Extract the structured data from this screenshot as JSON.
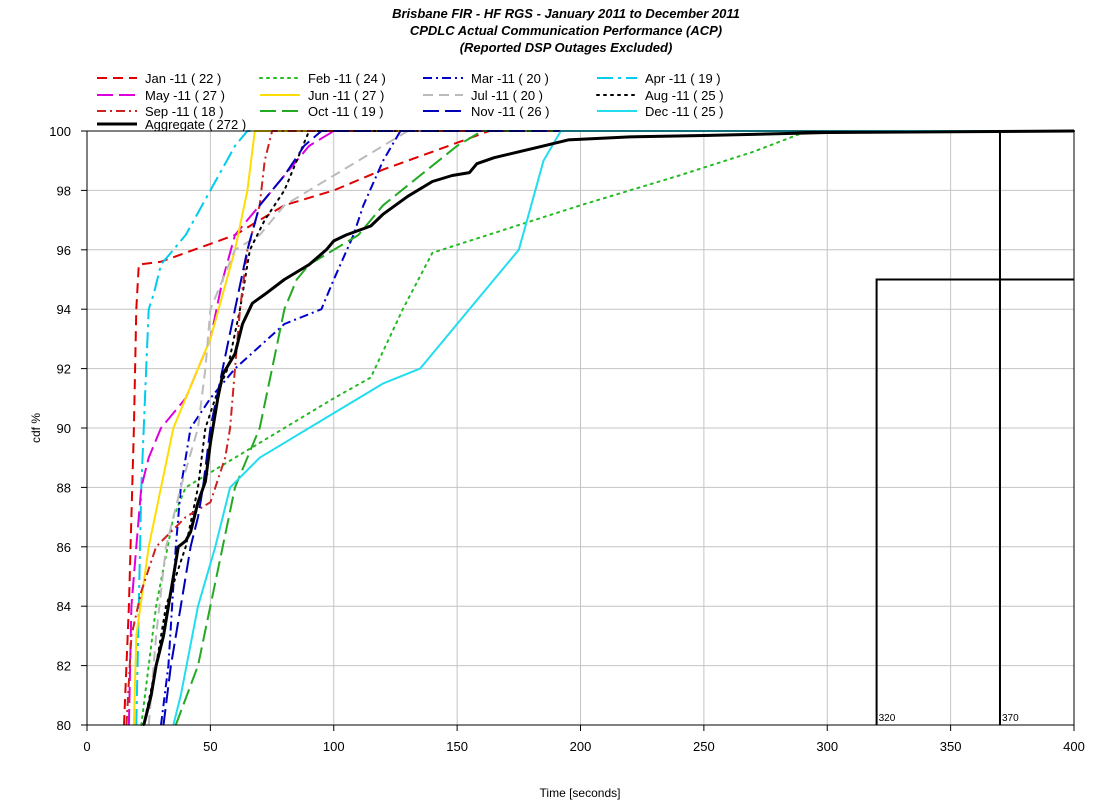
{
  "chart_data": {
    "type": "line",
    "title": "Brisbane FIR - HF RGS - January 2011 to December 2011",
    "subtitle": "CPDLC Actual Communication Performance (ACP)",
    "subtitle2": "(Reported DSP Outages Excluded)",
    "xlabel": "Time [seconds]",
    "ylabel": "cdf %",
    "xlim": [
      0,
      400
    ],
    "ylim": [
      80,
      100
    ],
    "grid": true,
    "legend_placement": "top",
    "x_ticks": [
      0,
      50,
      100,
      150,
      200,
      250,
      300,
      350,
      400
    ],
    "y_ticks": [
      80,
      82,
      84,
      86,
      88,
      90,
      92,
      94,
      96,
      98,
      100
    ],
    "series": [
      {
        "name": "Jan -11 ( 22 )",
        "color": "#e00000",
        "dash": "dashed",
        "points": [
          [
            15,
            80
          ],
          [
            17,
            84
          ],
          [
            19,
            90
          ],
          [
            20,
            94
          ],
          [
            21,
            95.5
          ],
          [
            30,
            95.6
          ],
          [
            60,
            96.5
          ],
          [
            80,
            97.5
          ],
          [
            100,
            98
          ],
          [
            120,
            98.7
          ],
          [
            140,
            99.3
          ],
          [
            163,
            100
          ],
          [
            400,
            100
          ]
        ]
      },
      {
        "name": "Feb -11 ( 24 )",
        "color": "#22bb22",
        "dash": "dotted",
        "points": [
          [
            22,
            80
          ],
          [
            28,
            84
          ],
          [
            35,
            87
          ],
          [
            40,
            88
          ],
          [
            60,
            89
          ],
          [
            80,
            90
          ],
          [
            100,
            91
          ],
          [
            115,
            91.7
          ],
          [
            128,
            94
          ],
          [
            140,
            95.9
          ],
          [
            170,
            96.7
          ],
          [
            200,
            97.5
          ],
          [
            240,
            98.5
          ],
          [
            270,
            99.3
          ],
          [
            292,
            100
          ],
          [
            400,
            100
          ]
        ]
      },
      {
        "name": "Mar -11 ( 20 )",
        "color": "#0000cc",
        "dash": "dashdot",
        "points": [
          [
            30,
            80
          ],
          [
            33,
            82
          ],
          [
            36,
            86
          ],
          [
            38,
            88
          ],
          [
            42,
            90
          ],
          [
            50,
            91
          ],
          [
            60,
            92
          ],
          [
            80,
            93.5
          ],
          [
            95,
            94
          ],
          [
            100,
            95
          ],
          [
            108,
            96.5
          ],
          [
            112,
            97.5
          ],
          [
            120,
            99
          ],
          [
            127,
            100
          ],
          [
            400,
            100
          ]
        ]
      },
      {
        "name": "Apr -11 ( 19 )",
        "color": "#00ccee",
        "dash": "longdashdot",
        "points": [
          [
            20,
            80
          ],
          [
            21,
            84
          ],
          [
            22,
            88
          ],
          [
            24,
            92
          ],
          [
            25,
            94
          ],
          [
            27,
            94.5
          ],
          [
            30,
            95.5
          ],
          [
            40,
            96.5
          ],
          [
            50,
            98
          ],
          [
            60,
            99.5
          ],
          [
            65,
            100
          ],
          [
            400,
            100
          ]
        ]
      },
      {
        "name": "May -11 ( 27 )",
        "color": "#dd00dd",
        "dash": "longdash",
        "points": [
          [
            17,
            80
          ],
          [
            18,
            84
          ],
          [
            20,
            86
          ],
          [
            22,
            88
          ],
          [
            25,
            89
          ],
          [
            30,
            90
          ],
          [
            40,
            91
          ],
          [
            50,
            93
          ],
          [
            55,
            95
          ],
          [
            60,
            96.5
          ],
          [
            70,
            97.5
          ],
          [
            80,
            98.5
          ],
          [
            90,
            99.5
          ],
          [
            100,
            100
          ],
          [
            400,
            100
          ]
        ]
      },
      {
        "name": "Jun -11 ( 27 )",
        "color": "#ffdd00",
        "dash": "solid",
        "points": [
          [
            19,
            80
          ],
          [
            20,
            83
          ],
          [
            25,
            86
          ],
          [
            30,
            88
          ],
          [
            35,
            90
          ],
          [
            45,
            92
          ],
          [
            50,
            93
          ],
          [
            55,
            94.5
          ],
          [
            60,
            96
          ],
          [
            65,
            98
          ],
          [
            68,
            100
          ],
          [
            400,
            100
          ]
        ]
      },
      {
        "name": "Jul -11 ( 20 )",
        "color": "#bbbbbb",
        "dash": "dashed",
        "points": [
          [
            25,
            80
          ],
          [
            28,
            83
          ],
          [
            32,
            86
          ],
          [
            38,
            88
          ],
          [
            45,
            90
          ],
          [
            48,
            92
          ],
          [
            50,
            94
          ],
          [
            55,
            95
          ],
          [
            60,
            96
          ],
          [
            70,
            96.5
          ],
          [
            80,
            97.5
          ],
          [
            100,
            98.5
          ],
          [
            110,
            99
          ],
          [
            130,
            100
          ],
          [
            400,
            100
          ]
        ]
      },
      {
        "name": "Aug -11 ( 25 )",
        "color": "#000000",
        "dash": "dotted",
        "points": [
          [
            23,
            80
          ],
          [
            28,
            82
          ],
          [
            32,
            84
          ],
          [
            40,
            86
          ],
          [
            45,
            88
          ],
          [
            48,
            90
          ],
          [
            52,
            91
          ],
          [
            57,
            92
          ],
          [
            62,
            94
          ],
          [
            66,
            96
          ],
          [
            72,
            97
          ],
          [
            80,
            98
          ],
          [
            85,
            99
          ],
          [
            90,
            100
          ],
          [
            400,
            100
          ]
        ]
      },
      {
        "name": "Sep -11 ( 18 )",
        "color": "#cc2222",
        "dash": "dashdot",
        "points": [
          [
            16,
            80
          ],
          [
            18,
            83
          ],
          [
            22,
            84.5
          ],
          [
            28,
            86
          ],
          [
            40,
            87
          ],
          [
            50,
            87.5
          ],
          [
            56,
            89
          ],
          [
            58,
            90
          ],
          [
            60,
            92
          ],
          [
            62,
            94
          ],
          [
            65,
            96
          ],
          [
            70,
            97.5
          ],
          [
            72,
            99
          ],
          [
            75,
            100
          ],
          [
            400,
            100
          ]
        ]
      },
      {
        "name": "Oct -11 ( 19 )",
        "color": "#22aa22",
        "dash": "longdash",
        "points": [
          [
            36,
            80
          ],
          [
            45,
            82
          ],
          [
            55,
            86
          ],
          [
            60,
            88
          ],
          [
            70,
            90
          ],
          [
            75,
            92
          ],
          [
            80,
            94
          ],
          [
            85,
            95
          ],
          [
            90,
            95.5
          ],
          [
            100,
            96
          ],
          [
            110,
            96.5
          ],
          [
            120,
            97.5
          ],
          [
            135,
            98.5
          ],
          [
            150,
            99.5
          ],
          [
            160,
            100
          ],
          [
            400,
            100
          ]
        ]
      },
      {
        "name": "Nov -11 ( 26 )",
        "color": "#0000bb",
        "dash": "longdash",
        "points": [
          [
            31,
            80
          ],
          [
            34,
            82
          ],
          [
            38,
            84
          ],
          [
            42,
            86
          ],
          [
            45,
            87
          ],
          [
            47,
            88
          ],
          [
            50,
            90
          ],
          [
            55,
            92
          ],
          [
            60,
            94
          ],
          [
            65,
            96
          ],
          [
            70,
            97.5
          ],
          [
            80,
            98.5
          ],
          [
            88,
            99.5
          ],
          [
            95,
            100
          ],
          [
            400,
            100
          ]
        ]
      },
      {
        "name": "Dec -11 ( 25 )",
        "color": "#22ddee",
        "dash": "solid",
        "points": [
          [
            35,
            80
          ],
          [
            38,
            81
          ],
          [
            45,
            84
          ],
          [
            52,
            86
          ],
          [
            58,
            88
          ],
          [
            70,
            89
          ],
          [
            100,
            90.5
          ],
          [
            120,
            91.5
          ],
          [
            135,
            92
          ],
          [
            150,
            93.5
          ],
          [
            165,
            95
          ],
          [
            175,
            96
          ],
          [
            180,
            97.5
          ],
          [
            185,
            99
          ],
          [
            192,
            100
          ],
          [
            400,
            100
          ]
        ]
      },
      {
        "name": "Aggregate ( 272 )",
        "color": "#000000",
        "dash": "solid",
        "width": 3,
        "points": [
          [
            23,
            80
          ],
          [
            26,
            81
          ],
          [
            28,
            82
          ],
          [
            31,
            83
          ],
          [
            33,
            84
          ],
          [
            35,
            85
          ],
          [
            37,
            86
          ],
          [
            40,
            86.2
          ],
          [
            42,
            86.5
          ],
          [
            45,
            87.5
          ],
          [
            48,
            88.2
          ],
          [
            50,
            89.5
          ],
          [
            53,
            91
          ],
          [
            55,
            91.8
          ],
          [
            60,
            92.5
          ],
          [
            63,
            93.5
          ],
          [
            67,
            94.2
          ],
          [
            72,
            94.5
          ],
          [
            80,
            95
          ],
          [
            90,
            95.5
          ],
          [
            97,
            96
          ],
          [
            100,
            96.3
          ],
          [
            105,
            96.5
          ],
          [
            115,
            96.8
          ],
          [
            120,
            97.2
          ],
          [
            130,
            97.8
          ],
          [
            140,
            98.3
          ],
          [
            148,
            98.5
          ],
          [
            155,
            98.6
          ],
          [
            158,
            98.9
          ],
          [
            165,
            99.1
          ],
          [
            175,
            99.3
          ],
          [
            185,
            99.5
          ],
          [
            195,
            99.7
          ],
          [
            220,
            99.8
          ],
          [
            250,
            99.85
          ],
          [
            300,
            99.95
          ],
          [
            400,
            100
          ]
        ]
      }
    ],
    "annotations": [
      {
        "label": "320",
        "x": 320,
        "y_top": 95
      },
      {
        "label": "370",
        "x": 370,
        "y_top": 100
      }
    ]
  }
}
